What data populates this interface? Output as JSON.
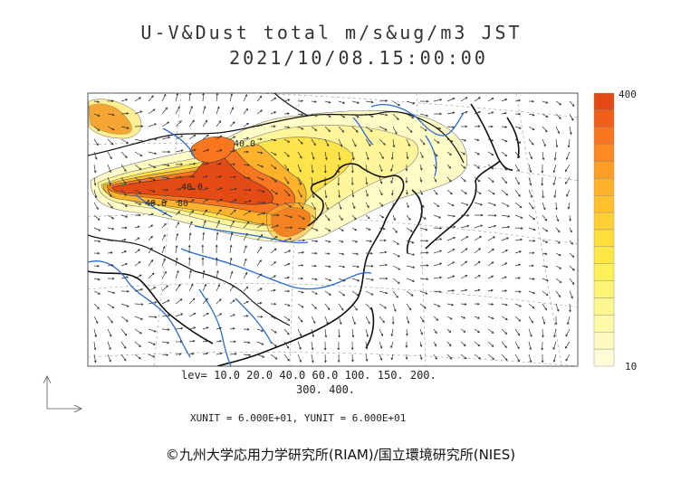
{
  "title": "U-V&Dust total m/s&ug/m3 JST",
  "datetime": "2021/10/08.15:00:00",
  "colorbar": {
    "max_label": "400",
    "min_label": "10",
    "colors": [
      "#e44a14",
      "#ef5f1a",
      "#f7761f",
      "#fb8a22",
      "#fd9e26",
      "#ffb22a",
      "#ffc12e",
      "#ffd033",
      "#ffdd3a",
      "#ffe845",
      "#fff059",
      "#fff476",
      "#fff890",
      "#fffaa8",
      "#fffbc0",
      "#fffcd6"
    ]
  },
  "contour_labels": [
    "40.0",
    "40.0",
    "80",
    "40.0"
  ],
  "levels_line1": "lev= 10.0 20.0 40.0 60.0 100. 150. 200.",
  "levels_line2": "300. 400.",
  "units": "XUNIT = 6.000E+01, YUNIT = 6.000E+01",
  "copyright": "©九州大学応用力学研究所(RIAM)/国立環境研究所(NIES)",
  "colors": {
    "coast": "#111111",
    "river": "#2a6cd8",
    "vector": "#333333",
    "dust_high": "#e44a14",
    "dust_low": "#fffbc6"
  }
}
